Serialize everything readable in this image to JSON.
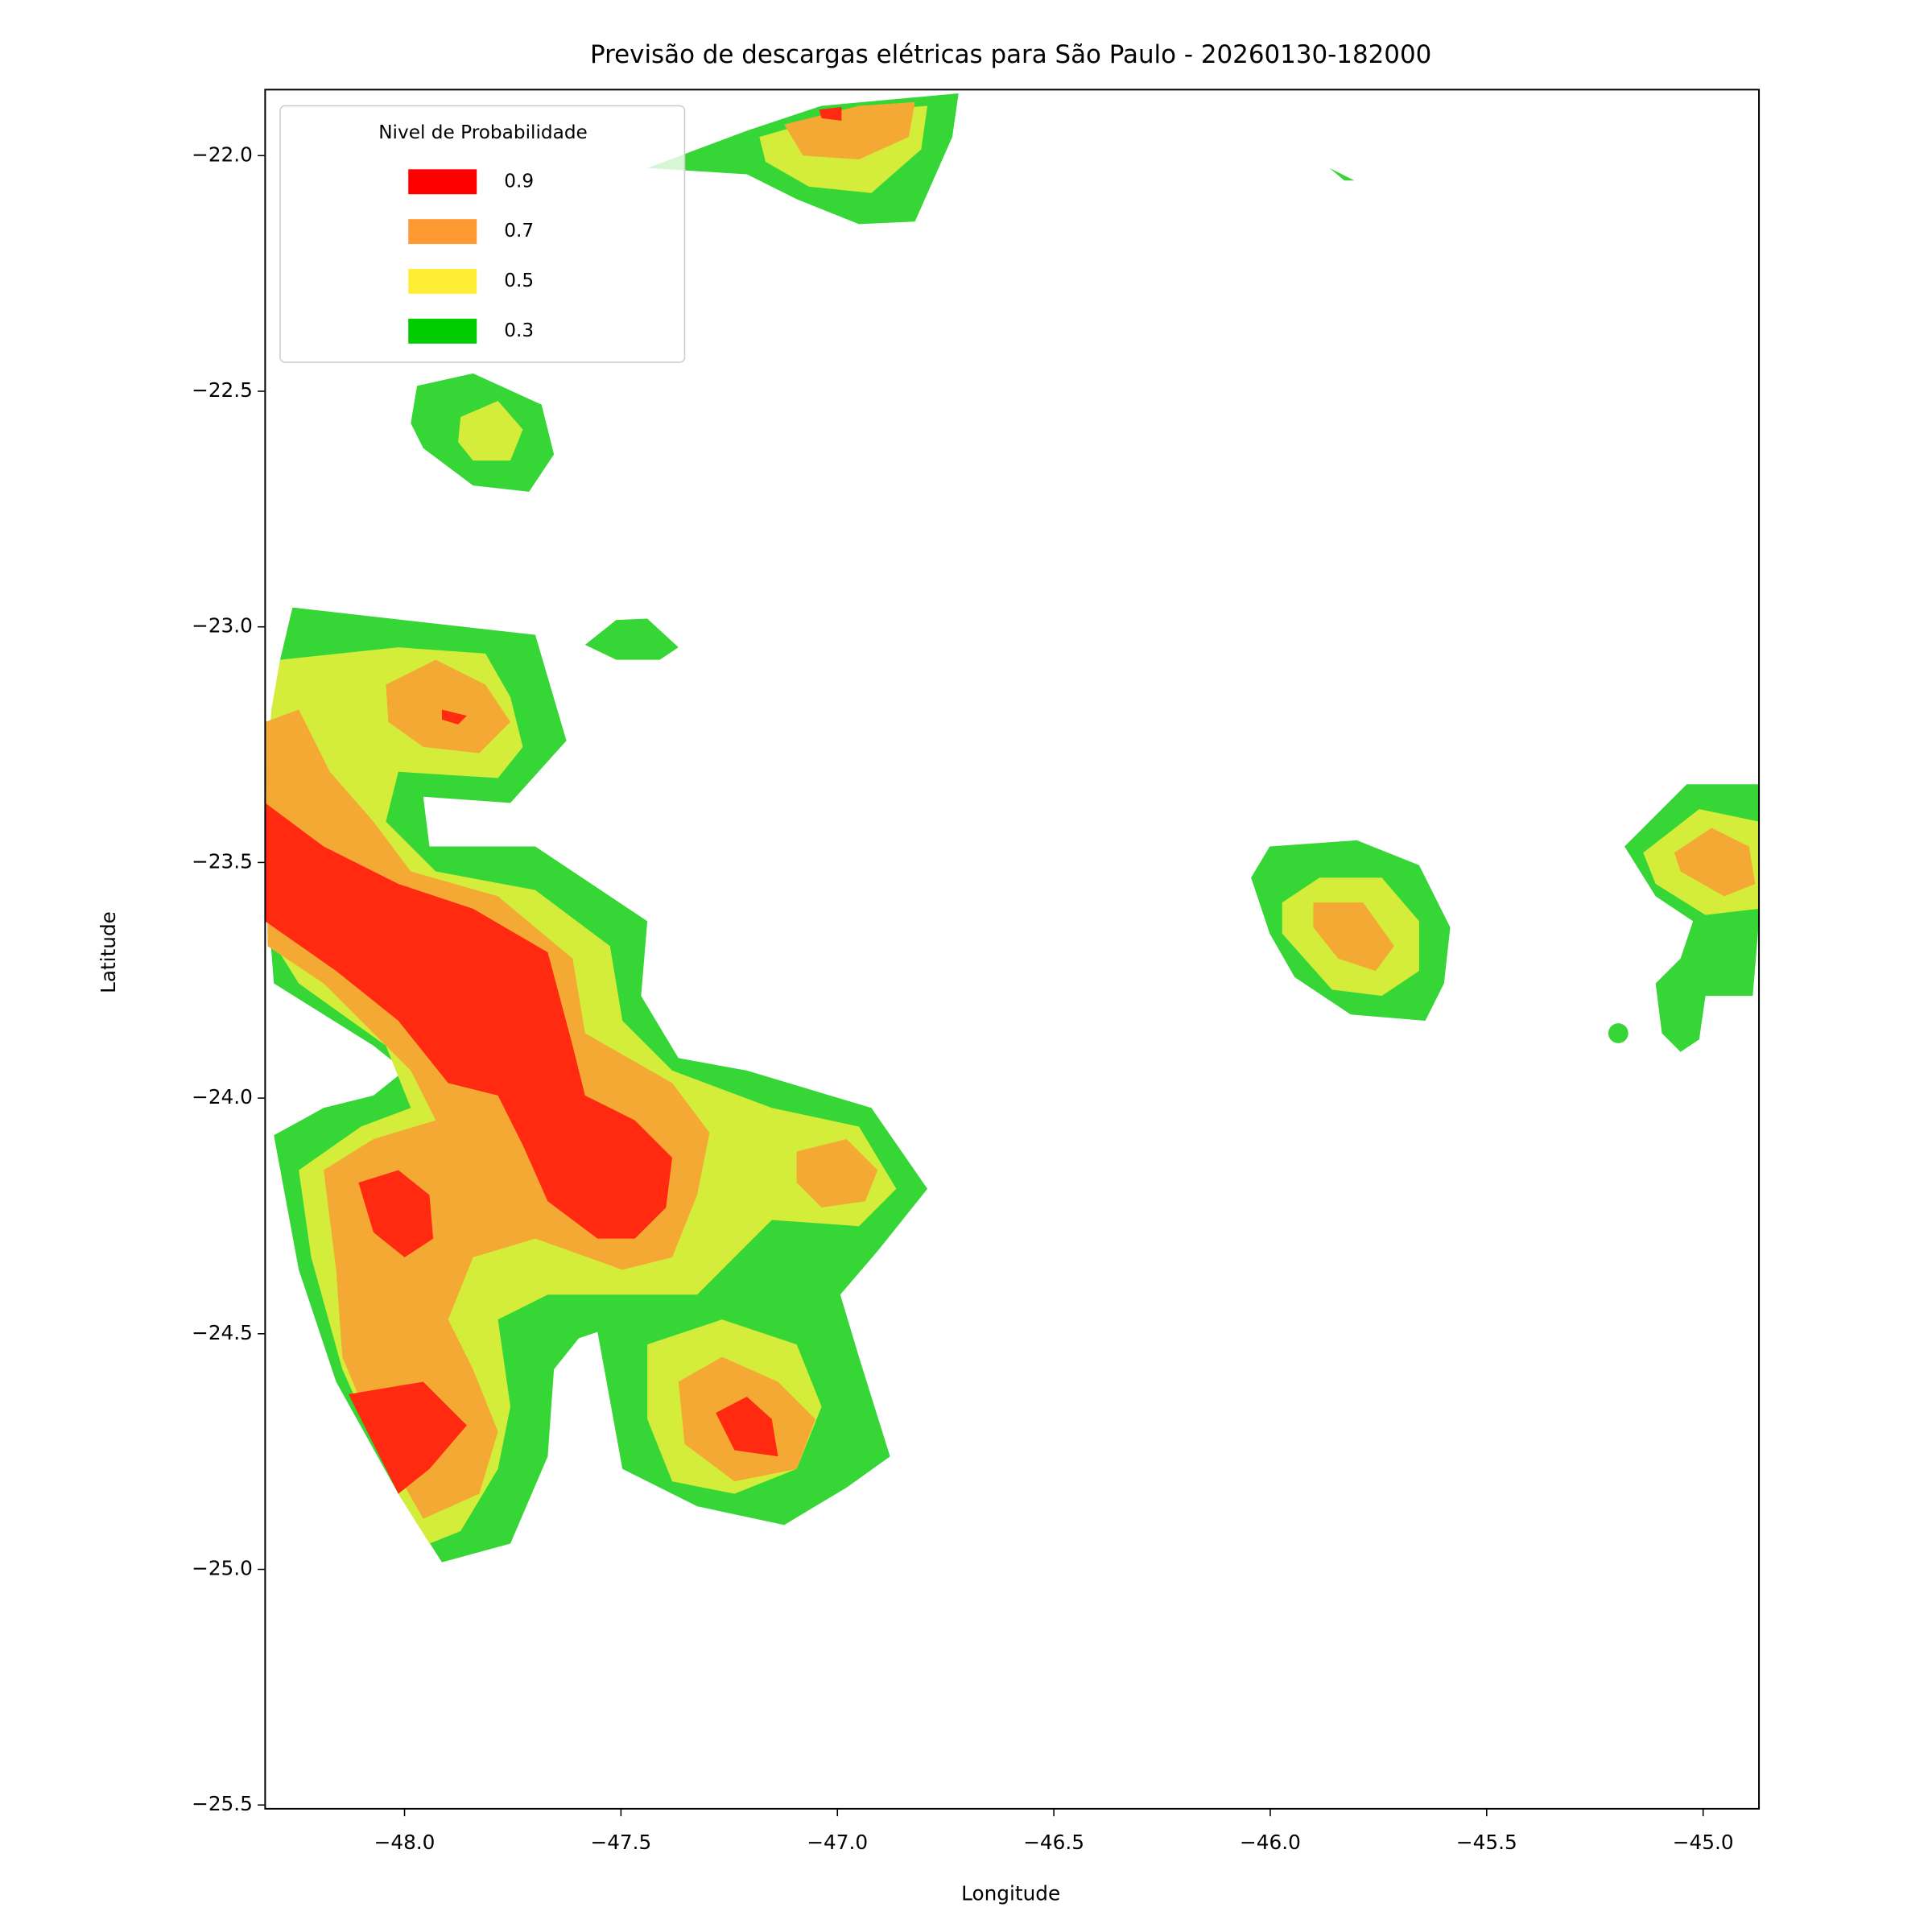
{
  "chart_data": {
    "type": "contour",
    "title": "Previsão de descargas elétricas para São Paulo - 20260130-182000",
    "xlabel": "Longitude",
    "ylabel": "Latitude",
    "xlim": [
      -48.322,
      -44.871
    ],
    "ylim": [
      -25.508,
      -21.86
    ],
    "xticks": [
      {
        "value": -48,
        "label": "−48.0"
      },
      {
        "value": -47.5,
        "label": "−47.5"
      },
      {
        "value": -47,
        "label": "−47.0"
      },
      {
        "value": -46.5,
        "label": "−46.5"
      },
      {
        "value": -46,
        "label": "−46.0"
      },
      {
        "value": -45.5,
        "label": "−45.5"
      },
      {
        "value": -45,
        "label": "−45.0"
      }
    ],
    "yticks": [
      {
        "value": -25.5,
        "label": "−25.5"
      },
      {
        "value": -25,
        "label": "−25.0"
      },
      {
        "value": -24.5,
        "label": "−24.5"
      },
      {
        "value": -24,
        "label": "−24.0"
      },
      {
        "value": -23.5,
        "label": "−23.5"
      },
      {
        "value": -23,
        "label": "−23.0"
      },
      {
        "value": -22.5,
        "label": "−22.5"
      },
      {
        "value": -22,
        "label": "−22.0"
      }
    ],
    "legend_title": "Nivel de Probabilidade",
    "legend_loc": "upper left",
    "series": [
      {
        "name": "0.9",
        "color": "#ff0000"
      },
      {
        "name": "0.7",
        "color": "#ff9933"
      },
      {
        "name": "0.5",
        "color": "#ffee33"
      },
      {
        "name": "0.3",
        "color": "#00cc00"
      }
    ]
  }
}
